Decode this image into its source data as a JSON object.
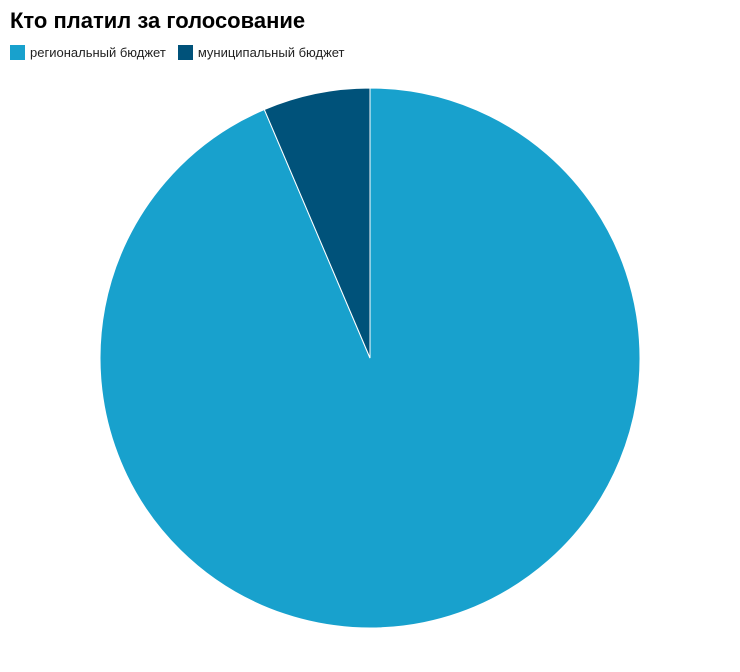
{
  "chart_data": {
    "type": "pie",
    "title": "Кто платил за голосование",
    "legend_position": "top-left",
    "slices": [
      {
        "name": "региональный бюджет",
        "value": 93.6,
        "color": "#18a1cd"
      },
      {
        "name": "муниципальный бюджет",
        "value": 6.4,
        "color": "#00527a"
      }
    ]
  }
}
